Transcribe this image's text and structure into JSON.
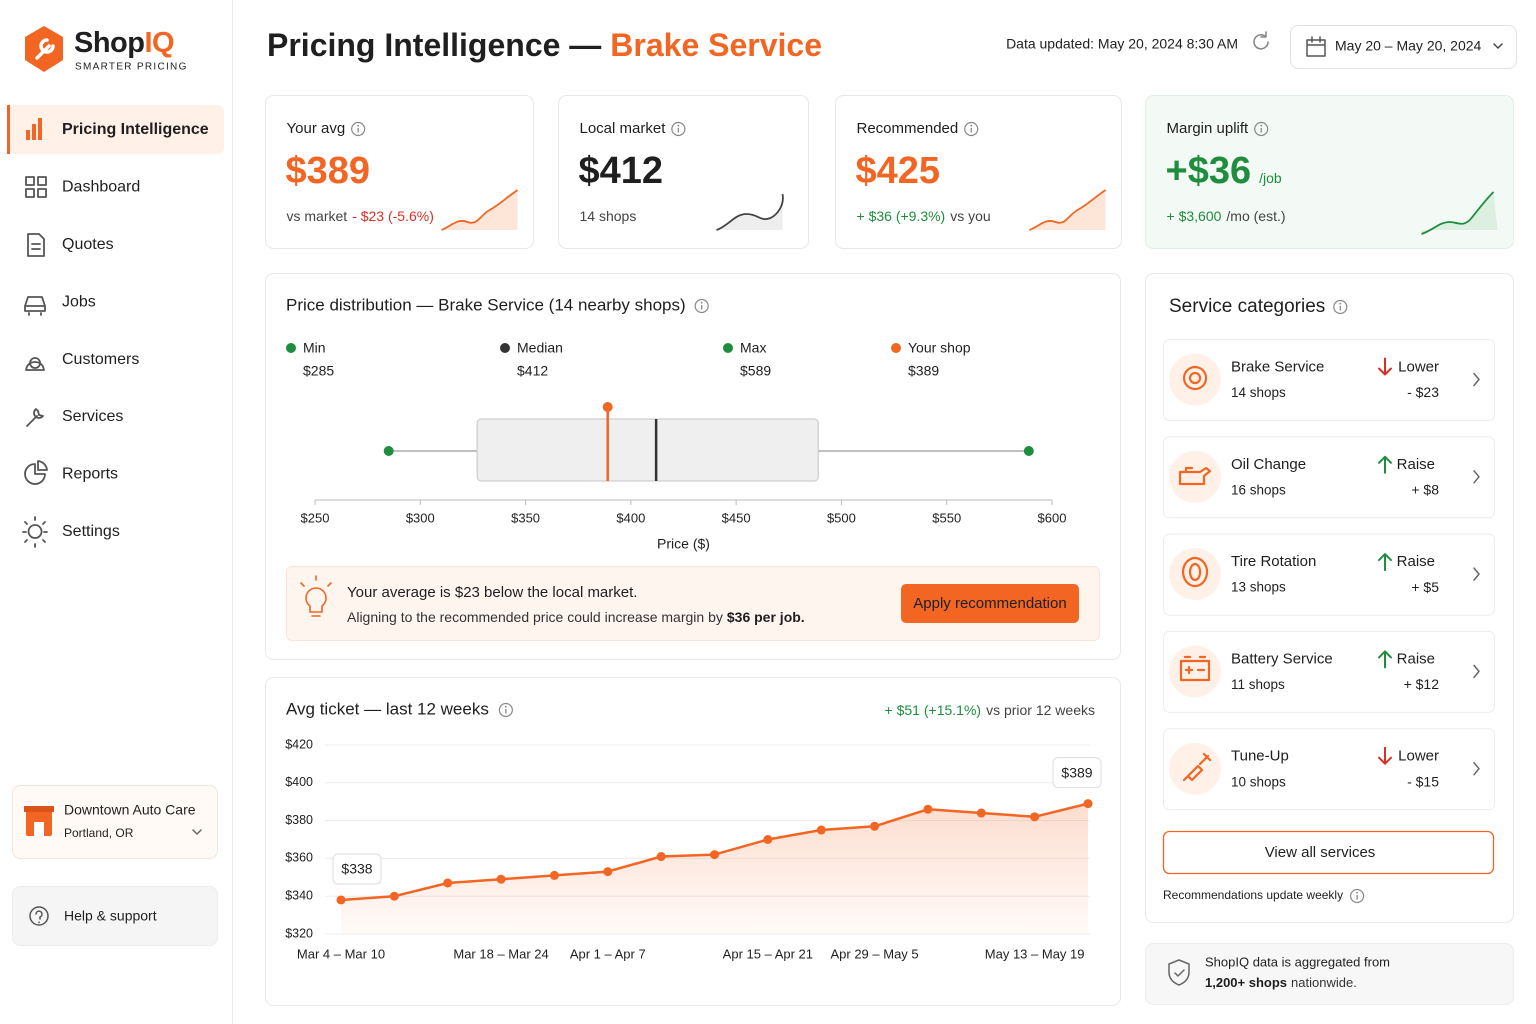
{
  "brand": {
    "name": "Shop",
    "name_accent": "IQ",
    "tagline": "SMARTER PRICING"
  },
  "nav": {
    "items": [
      "Pricing Intelligence",
      "Dashboard",
      "Quotes",
      "Jobs",
      "Customers",
      "Services",
      "Reports",
      "Settings"
    ],
    "active": 0
  },
  "shop": {
    "name": "Downtown Auto Care",
    "location": "Portland, OR"
  },
  "help": "Help & support",
  "header": {
    "title": "Pricing Intelligence —",
    "title_accent": "Brake Service",
    "updated": "Data updated: May 20, 2024 8:30 AM",
    "date_range": "May 20 – May 20, 2024"
  },
  "kpis": [
    {
      "label": "Your avg",
      "value": "$389",
      "tone": "orange",
      "note": [
        {
          "text": "vs market"
        },
        {
          "text": "- $23 (-5.6%)",
          "tone": "red"
        }
      ]
    },
    {
      "label": "Local market",
      "value": "$412",
      "tone": "dark",
      "note": [
        {
          "text": "14 shops"
        }
      ]
    },
    {
      "label": "Recommended",
      "value": "$425",
      "tone": "orange",
      "note": [
        {
          "text": "+ $36 (+9.3%)",
          "tone": "green"
        },
        {
          "text": "vs you"
        }
      ]
    },
    {
      "label": "Margin uplift",
      "value": "+$36",
      "unit": "/job",
      "tone": "green",
      "note": [
        {
          "text": "+ $3,600",
          "tone": "green"
        },
        {
          "text": "/mo (est.)"
        }
      ]
    }
  ],
  "chart_data": [
    {
      "type": "box",
      "title": "Price distribution — Brake Service (14 nearby shops)",
      "series": [
        {
          "name": "Min",
          "value": 285,
          "value_label": "$285",
          "color": "#1e8e3e"
        },
        {
          "name": "Median",
          "value": 412,
          "value_label": "$412",
          "color": "#333333"
        },
        {
          "name": "Max",
          "value": 589,
          "value_label": "$589",
          "color": "#1e8e3e"
        },
        {
          "name": "Your shop",
          "value": 389,
          "value_label": "$389",
          "color": "#f26522"
        }
      ],
      "q1": 327,
      "q3": 489,
      "xlim": [
        250,
        600
      ],
      "xticks": [
        {
          "value": 250,
          "label": "$250"
        },
        {
          "value": 300,
          "label": "$300"
        },
        {
          "value": 350,
          "label": "$350"
        },
        {
          "value": 400,
          "label": "$400"
        },
        {
          "value": 450,
          "label": "$450"
        },
        {
          "value": 500,
          "label": "$500"
        },
        {
          "value": 550,
          "label": "$550"
        },
        {
          "value": 600,
          "label": "$600"
        }
      ],
      "xlabel": "Price ($)"
    },
    {
      "type": "line",
      "title": "Avg ticket — last 12 weeks",
      "delta": "+ $51 (+15.1%)",
      "delta_note": "vs prior 12 weeks",
      "categories": [
        "Mar 4 – Mar 10",
        null,
        null,
        "Mar 18 – Mar 24",
        null,
        "Apr 1 – Apr 7",
        null,
        null,
        "Apr 15 – Apr 21",
        null,
        "Apr 29 – May 5",
        null,
        null,
        "May 13 – May 19",
        null
      ],
      "values": [
        338,
        340,
        347,
        349,
        351,
        353,
        361,
        362,
        370,
        375,
        377,
        386,
        384,
        382,
        389
      ],
      "value_labels": [
        "$338",
        null,
        null,
        null,
        null,
        null,
        null,
        null,
        null,
        null,
        null,
        null,
        null,
        null,
        "$389"
      ],
      "color": "#f26522",
      "ylim": [
        320,
        420
      ],
      "yticks": [
        {
          "value": 320,
          "label": "$320"
        },
        {
          "value": 340,
          "label": "$340"
        },
        {
          "value": 360,
          "label": "$360"
        },
        {
          "value": 380,
          "label": "$380"
        },
        {
          "value": 400,
          "label": "$400"
        },
        {
          "value": 420,
          "label": "$420"
        }
      ],
      "grid": true
    }
  ],
  "insight": {
    "headline": "Your average is $23 below the local market.",
    "body": "Aligning to the recommended price could increase margin by",
    "body_strong": "$36 per job.",
    "action": "Apply recommendation"
  },
  "services": {
    "title": "Service categories",
    "items": [
      {
        "name": "Brake Service",
        "shops": "14 shops",
        "direction": "Lower",
        "change": "- $23"
      },
      {
        "name": "Oil Change",
        "shops": "16 shops",
        "direction": "Raise",
        "change": "+ $8"
      },
      {
        "name": "Tire Rotation",
        "shops": "13 shops",
        "direction": "Raise",
        "change": "+ $5"
      },
      {
        "name": "Battery Service",
        "shops": "11 shops",
        "direction": "Raise",
        "change": "+ $12"
      },
      {
        "name": "Tune-Up",
        "shops": "10 shops",
        "direction": "Lower",
        "change": "- $15"
      }
    ],
    "action": "View all services",
    "note": "Recommendations update weekly"
  },
  "footer": {
    "text": "ShopIQ data is aggregated from",
    "strong": "1,200+ shops",
    "rest": "nationwide."
  }
}
